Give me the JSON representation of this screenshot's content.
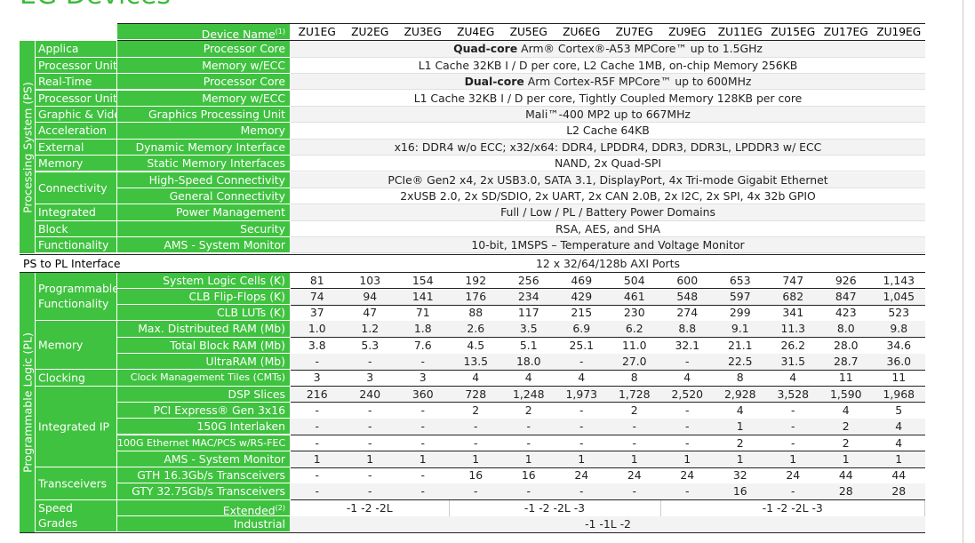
{
  "title": "EG Devices",
  "devices_header": "Device Name",
  "devices_header_sup": "(1)",
  "devices": [
    "ZU1EG",
    "ZU2EG",
    "ZU3EG",
    "ZU4EG",
    "ZU5EG",
    "ZU6EG",
    "ZU7EG",
    "ZU9EG",
    "ZU11EG",
    "ZU15EG",
    "ZU17EG",
    "ZU19EG"
  ],
  "ps_label": "Processing System (PS)",
  "pl_label": "Programmable Logic (PL)",
  "ps_to_pl": {
    "label": "PS to PL Interface",
    "value": "12  x 32/64/128b AXI Ports"
  },
  "ps_rows": [
    {
      "cat": "Applica",
      "feature": "Processor Core",
      "value_bold": "Quad-core",
      "value": " Arm® Cortex®-A53 MPCore™ up to 1.5GHz"
    },
    {
      "cat": "Processor Unit",
      "feature": "Memory w/ECC",
      "value_bold": "",
      "value": "L1 Cache 32KB I / D per core, L2 Cache 1MB, on-chip Memory 256KB"
    },
    {
      "cat": "Real-Time",
      "feature": "Processor Core",
      "value_bold": "Dual-core",
      "value": " Arm Cortex-R5F MPCore™ up to 600MHz"
    },
    {
      "cat": "Processor Unit",
      "feature": "Memory w/ECC",
      "value_bold": "",
      "value": "L1 Cache 32KB I / D per core, Tightly Coupled Memory 128KB per core"
    },
    {
      "cat": "Graphic & Video",
      "feature": "Graphics Processing Unit",
      "value_bold": "",
      "value": "Mali™-400 MP2 up to 667MHz"
    },
    {
      "cat": "Acceleration",
      "feature": "Memory",
      "value_bold": "",
      "value": "L2 Cache 64KB"
    },
    {
      "cat": "External",
      "feature": "Dynamic Memory Interface",
      "value_bold": "",
      "value": "x16: DDR4 w/o ECC; x32/x64: DDR4, LPDDR4, DDR3, DDR3L, LPDDR3 w/ ECC"
    },
    {
      "cat": "Memory",
      "feature": "Static Memory Interfaces",
      "value_bold": "",
      "value": "NAND, 2x Quad-SPI"
    },
    {
      "cat": "",
      "feature": "High-Speed Connectivity",
      "value_bold": "",
      "value": "PCIe® Gen2 x4, 2x USB3.0, SATA 3.1, DisplayPort, 4x Tri-mode Gigabit Ethernet"
    },
    {
      "cat": "",
      "feature": "General Connectivity",
      "value_bold": "",
      "value": "2xUSB 2.0, 2x SD/SDIO, 2x UART, 2x CAN 2.0B, 2x I2C, 2x SPI, 4x 32b GPIO"
    },
    {
      "cat": "Integrated",
      "feature": "Power Management",
      "value_bold": "",
      "value": "Full / Low / PL / Battery Power Domains"
    },
    {
      "cat": "Block",
      "feature": "Security",
      "value_bold": "",
      "value": "RSA, AES, and SHA"
    },
    {
      "cat": "Functionality",
      "feature": "AMS - System Monitor",
      "value_bold": "",
      "value": "10-bit, 1MSPS – Temperature and Voltage Monitor"
    }
  ],
  "ps_connectivity_label": "Connectivity",
  "pl_groups": {
    "programmable": "Programmable Functionality",
    "memory": "Memory",
    "clocking": "Clocking",
    "integrated_ip": "Integrated IP",
    "transceivers": "Transceivers",
    "speed_grades": "Speed Grades"
  },
  "pl_rows": [
    {
      "feature": "System Logic Cells (K)",
      "values": [
        "81",
        "103",
        "154",
        "192",
        "256",
        "469",
        "504",
        "600",
        "653",
        "747",
        "926",
        "1,143"
      ]
    },
    {
      "feature": "CLB Flip-Flops (K)",
      "values": [
        "74",
        "94",
        "141",
        "176",
        "234",
        "429",
        "461",
        "548",
        "597",
        "682",
        "847",
        "1,045"
      ]
    },
    {
      "feature": "CLB LUTs (K)",
      "values": [
        "37",
        "47",
        "71",
        "88",
        "117",
        "215",
        "230",
        "274",
        "299",
        "341",
        "423",
        "523"
      ]
    },
    {
      "feature": "Max. Distributed RAM (Mb)",
      "values": [
        "1.0",
        "1.2",
        "1.8",
        "2.6",
        "3.5",
        "6.9",
        "6.2",
        "8.8",
        "9.1",
        "11.3",
        "8.0",
        "9.8"
      ]
    },
    {
      "feature": "Total Block RAM (Mb)",
      "values": [
        "3.8",
        "5.3",
        "7.6",
        "4.5",
        "5.1",
        "25.1",
        "11.0",
        "32.1",
        "21.1",
        "26.2",
        "28.0",
        "34.6"
      ]
    },
    {
      "feature": "UltraRAM (Mb)",
      "values": [
        "-",
        "-",
        "-",
        "13.5",
        "18.0",
        "-",
        "27.0",
        "-",
        "22.5",
        "31.5",
        "28.7",
        "36.0"
      ]
    },
    {
      "feature": "Clock Management Tiles (CMTs)",
      "values": [
        "3",
        "3",
        "3",
        "4",
        "4",
        "4",
        "8",
        "4",
        "8",
        "4",
        "11",
        "11"
      ]
    },
    {
      "feature": "DSP Slices",
      "values": [
        "216",
        "240",
        "360",
        "728",
        "1,248",
        "1,973",
        "1,728",
        "2,520",
        "2,928",
        "3,528",
        "1,590",
        "1,968"
      ]
    },
    {
      "feature": "PCI Express® Gen 3x16",
      "values": [
        "-",
        "-",
        "-",
        "2",
        "2",
        "-",
        "2",
        "-",
        "4",
        "-",
        "4",
        "5"
      ]
    },
    {
      "feature": "150G Interlaken",
      "values": [
        "-",
        "-",
        "-",
        "-",
        "-",
        "-",
        "-",
        "-",
        "1",
        "-",
        "2",
        "4"
      ]
    },
    {
      "feature": "100G Ethernet MAC/PCS w/RS-FEC",
      "values": [
        "-",
        "-",
        "-",
        "-",
        "-",
        "-",
        "-",
        "-",
        "2",
        "-",
        "2",
        "4"
      ]
    },
    {
      "feature": "AMS - System Monitor",
      "values": [
        "1",
        "1",
        "1",
        "1",
        "1",
        "1",
        "1",
        "1",
        "1",
        "1",
        "1",
        "1"
      ]
    },
    {
      "feature": "GTH 16.3Gb/s Transceivers",
      "values": [
        "-",
        "-",
        "-",
        "16",
        "16",
        "24",
        "24",
        "24",
        "32",
        "24",
        "44",
        "44"
      ]
    },
    {
      "feature": "GTY 32.75Gb/s Transceivers",
      "values": [
        "-",
        "-",
        "-",
        "-",
        "-",
        "-",
        "-",
        "-",
        "16",
        "-",
        "28",
        "28"
      ]
    }
  ],
  "speed_extended": {
    "feature": "Extended",
    "sup": "(2)",
    "groups": [
      "-1 -2 -2L",
      "-1 -2 -2L -3",
      "-1 -2 -2L -3"
    ]
  },
  "speed_industrial": {
    "feature": "Industrial",
    "value": "-1 -1L -2"
  }
}
